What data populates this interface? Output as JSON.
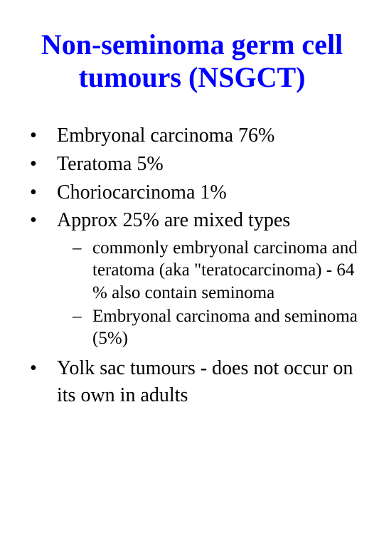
{
  "colors": {
    "title_color": "#0000ff",
    "body_color": "#000000",
    "background": "#ffffff"
  },
  "typography": {
    "font_family": "Times New Roman",
    "title_fontsize_pt": 30,
    "title_fontweight": "bold",
    "bullet_fontsize_pt": 21,
    "subbullet_fontsize_pt": 19
  },
  "title": "Non-seminoma germ cell tumours (NSGCT)",
  "bullets": [
    {
      "text": "Embryonal carcinoma 76%"
    },
    {
      "text": "Teratoma 5%"
    },
    {
      "text": "Choriocarcinoma 1%"
    },
    {
      "text": "Approx 25% are mixed types",
      "sub": [
        "commonly embryonal carcinoma and teratoma (aka \"teratocarcinoma) - 64 % also contain seminoma",
        "Embryonal carcinoma and seminoma (5%)"
      ]
    },
    {
      "text": "Yolk sac tumours - does not occur on its own in adults"
    }
  ]
}
